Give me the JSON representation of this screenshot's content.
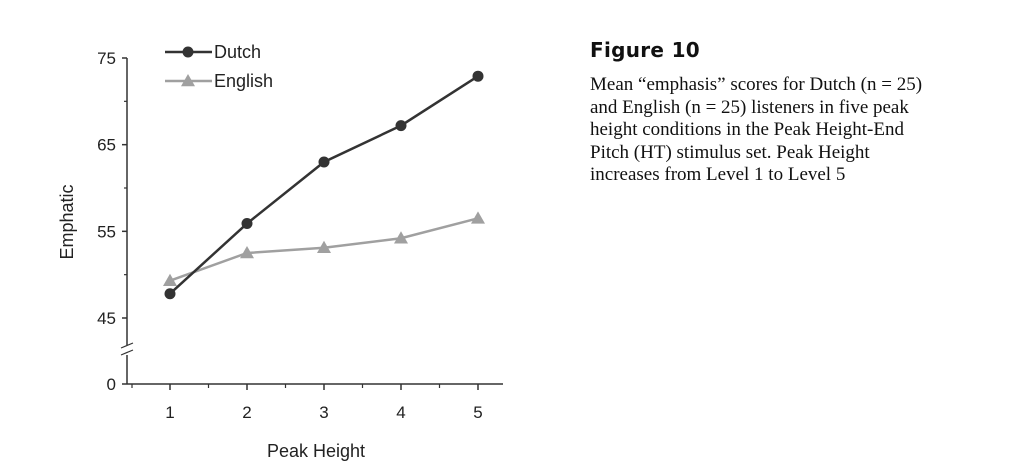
{
  "caption": {
    "title": "Figure 10",
    "text": "Mean “emphasis” scores for Dutch (n = 25) and English (n = 25) listeners in five peak height conditions in the Peak Height-End Pitch (HT) stimulus set. Peak Height increases from Level 1 to Level 5"
  },
  "chart_data": {
    "type": "line",
    "xlabel": "Peak Height",
    "ylabel": "Emphatic",
    "categories": [
      "1",
      "2",
      "3",
      "4",
      "5"
    ],
    "y_ticks": [
      "75",
      "65",
      "55",
      "45",
      "0"
    ],
    "ylim": [
      45,
      75
    ],
    "axis_break": true,
    "legend_position": "top-left",
    "series": [
      {
        "name": "Dutch",
        "marker": "circle",
        "color": "#333333",
        "values": [
          47.8,
          55.9,
          63.0,
          67.2,
          72.9
        ]
      },
      {
        "name": "English",
        "marker": "triangle",
        "color": "#a0a0a0",
        "values": [
          49.3,
          52.5,
          53.1,
          54.2,
          56.5
        ]
      }
    ],
    "grid": false
  }
}
